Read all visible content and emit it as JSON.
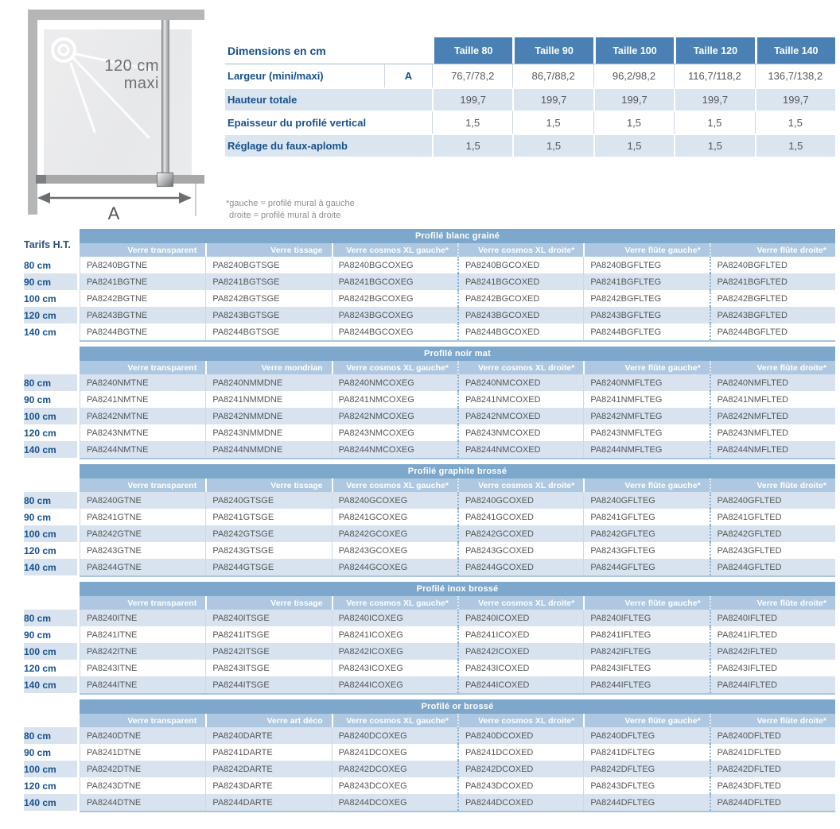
{
  "colors": {
    "size_header_blue": "#4a80b4",
    "band_blue": "#7da8cc",
    "column_header_blue": "#adc8e0",
    "stripe_blue": "#d8e3ef",
    "label_blue": "#17518c",
    "code_gray": "#55575a"
  },
  "diagram": {
    "max_label_line1": "120 cm",
    "max_label_line2": "maxi",
    "dim_label": "A"
  },
  "dimensions_table": {
    "title": "Dimensions en cm",
    "size_headers": [
      "Taille 80",
      "Taille 90",
      "Taille 100",
      "Taille 120",
      "Taille 140"
    ],
    "rows": [
      {
        "label": "Largeur (mini/maxi)",
        "ref": "A",
        "values": [
          "76,7/78,2",
          "86,7/88,2",
          "96,2/98,2",
          "116,7/118,2",
          "136,7/138,2"
        ]
      },
      {
        "label": "Hauteur totale",
        "ref": "",
        "values": [
          "199,7",
          "199,7",
          "199,7",
          "199,7",
          "199,7"
        ]
      },
      {
        "label": "Epaisseur du profilé vertical",
        "ref": "",
        "values": [
          "1,5",
          "1,5",
          "1,5",
          "1,5",
          "1,5"
        ]
      },
      {
        "label": "Réglage du faux-aplomb",
        "ref": "",
        "values": [
          "1,5",
          "1,5",
          "1,5",
          "1,5",
          "1,5"
        ]
      }
    ]
  },
  "footnote": {
    "line1": "*gauche = profilé mural à gauche",
    "line2": "droite = profilé mural à droite"
  },
  "tarifs_label": "Tarifs H.T.",
  "price_tables": [
    {
      "title": "Profilé blanc grainé",
      "columns": [
        "Verre transparent",
        "Verre tissage",
        "Verre cosmos XL gauche*",
        "Verre cosmos XL droite*",
        "Verre flûte gauche*",
        "Verre flûte droite*"
      ],
      "striped_rows": [
        1,
        3
      ],
      "rows": [
        {
          "size": "80 cm",
          "codes": [
            "PA8240BGTNE",
            "PA8240BGTSGE",
            "PA8240BGCOXEG",
            "PA8240BGCOXED",
            "PA8240BGFLTEG",
            "PA8240BGFLTED"
          ]
        },
        {
          "size": "90 cm",
          "codes": [
            "PA8241BGTNE",
            "PA8241BGTSGE",
            "PA8241BGCOXEG",
            "PA8241BGCOXED",
            "PA8241BGFLTEG",
            "PA8241BGFLTED"
          ]
        },
        {
          "size": "100 cm",
          "codes": [
            "PA8242BGTNE",
            "PA8242BGTSGE",
            "PA8242BGCOXEG",
            "PA8242BGCOXED",
            "PA8242BGFLTEG",
            "PA8242BGFLTED"
          ]
        },
        {
          "size": "120 cm",
          "codes": [
            "PA8243BGTNE",
            "PA8243BGTSGE",
            "PA8243BGCOXEG",
            "PA8243BGCOXED",
            "PA8243BGFLTEG",
            "PA8243BGFLTED"
          ]
        },
        {
          "size": "140 cm",
          "codes": [
            "PA8244BGTNE",
            "PA8244BGTSGE",
            "PA8244BGCOXEG",
            "PA8244BGCOXED",
            "PA8244BGFLTEG",
            "PA8244BGFLTED"
          ]
        }
      ]
    },
    {
      "title": "Profilé noir mat",
      "columns": [
        "Verre transparent",
        "Verre mondrian",
        "Verre cosmos XL gauche*",
        "Verre cosmos XL droite*",
        "Verre flûte gauche*",
        "Verre flûte droite*"
      ],
      "striped_rows": [
        0,
        2,
        4
      ],
      "rows": [
        {
          "size": "80 cm",
          "codes": [
            "PA8240NMTNE",
            "PA8240NMMDNE",
            "PA8240NMCOXEG",
            "PA8240NMCOXED",
            "PA8240NMFLTEG",
            "PA8240NMFLTED"
          ]
        },
        {
          "size": "90 cm",
          "codes": [
            "PA8241NMTNE",
            "PA8241NMMDNE",
            "PA8241NMCOXEG",
            "PA8241NMCOXED",
            "PA8241NMFLTEG",
            "PA8241NMFLTED"
          ]
        },
        {
          "size": "100 cm",
          "codes": [
            "PA8242NMTNE",
            "PA8242NMMDNE",
            "PA8242NMCOXEG",
            "PA8242NMCOXED",
            "PA8242NMFLTEG",
            "PA8242NMFLTED"
          ]
        },
        {
          "size": "120 cm",
          "codes": [
            "PA8243NMTNE",
            "PA8243NMMDNE",
            "PA8243NMCOXEG",
            "PA8243NMCOXED",
            "PA8243NMFLTEG",
            "PA8243NMFLTED"
          ]
        },
        {
          "size": "140 cm",
          "codes": [
            "PA8244NMTNE",
            "PA8244NMMDNE",
            "PA8244NMCOXEG",
            "PA8244NMCOXED",
            "PA8244NMFLTEG",
            "PA8244NMFLTED"
          ]
        }
      ]
    },
    {
      "title": "Profilé graphite brossé",
      "columns": [
        "Verre transparent",
        "Verre tissage",
        "Verre cosmos XL gauche*",
        "Verre cosmos XL droite*",
        "Verre flûte gauche*",
        "Verre flûte droite*"
      ],
      "striped_rows": [
        0,
        2,
        4
      ],
      "rows": [
        {
          "size": "80 cm",
          "codes": [
            "PA8240GTNE",
            "PA8240GTSGE",
            "PA8240GCOXEG",
            "PA8240GCOXED",
            "PA8240GFLTEG",
            "PA8240GFLTED"
          ]
        },
        {
          "size": "90 cm",
          "codes": [
            "PA8241GTNE",
            "PA8241GTSGE",
            "PA8241GCOXEG",
            "PA8241GCOXED",
            "PA8241GFLTEG",
            "PA8241GFLTED"
          ]
        },
        {
          "size": "100 cm",
          "codes": [
            "PA8242GTNE",
            "PA8242GTSGE",
            "PA8242GCOXEG",
            "PA8242GCOXED",
            "PA8242GFLTEG",
            "PA8242GFLTED"
          ]
        },
        {
          "size": "120 cm",
          "codes": [
            "PA8243GTNE",
            "PA8243GTSGE",
            "PA8243GCOXEG",
            "PA8243GCOXED",
            "PA8243GFLTEG",
            "PA8243GFLTED"
          ]
        },
        {
          "size": "140 cm",
          "codes": [
            "PA8244GTNE",
            "PA8244GTSGE",
            "PA8244GCOXEG",
            "PA8244GCOXED",
            "PA8244GFLTEG",
            "PA8244GFLTED"
          ]
        }
      ]
    },
    {
      "title": "Profilé inox brossé",
      "columns": [
        "Verre transparent",
        "Verre tissage",
        "Verre cosmos XL gauche*",
        "Verre cosmos XL droite*",
        "Verre flûte gauche*",
        "Verre flûte droite*"
      ],
      "striped_rows": [
        0,
        2,
        4
      ],
      "rows": [
        {
          "size": "80 cm",
          "codes": [
            "PA8240ITNE",
            "PA8240ITSGE",
            "PA8240ICOXEG",
            "PA8240ICOXED",
            "PA8240IFLTEG",
            "PA8240IFLTED"
          ]
        },
        {
          "size": "90 cm",
          "codes": [
            "PA8241ITNE",
            "PA8241ITSGE",
            "PA8241ICOXEG",
            "PA8241ICOXED",
            "PA8241IFLTEG",
            "PA8241IFLTED"
          ]
        },
        {
          "size": "100 cm",
          "codes": [
            "PA8242ITNE",
            "PA8242ITSGE",
            "PA8242ICOXEG",
            "PA8242ICOXED",
            "PA8242IFLTEG",
            "PA8242IFLTED"
          ]
        },
        {
          "size": "120 cm",
          "codes": [
            "PA8243ITNE",
            "PA8243ITSGE",
            "PA8243ICOXEG",
            "PA8243ICOXED",
            "PA8243IFLTEG",
            "PA8243IFLTED"
          ]
        },
        {
          "size": "140 cm",
          "codes": [
            "PA8244ITNE",
            "PA8244ITSGE",
            "PA8244ICOXEG",
            "PA8244ICOXED",
            "PA8244IFLTEG",
            "PA8244IFLTED"
          ]
        }
      ]
    },
    {
      "title": "Profilé or brossé",
      "columns": [
        "Verre transparent",
        "Verre art déco",
        "Verre cosmos XL gauche*",
        "Verre cosmos XL droite*",
        "Verre flûte gauche*",
        "Verre flûte droite*"
      ],
      "striped_rows": [
        0,
        2,
        4
      ],
      "rows": [
        {
          "size": "80 cm",
          "codes": [
            "PA8240DTNE",
            "PA8240DARTE",
            "PA8240DCOXEG",
            "PA8240DCOXED",
            "PA8240DFLTEG",
            "PA8240DFLTED"
          ]
        },
        {
          "size": "90 cm",
          "codes": [
            "PA8241DTNE",
            "PA8241DARTE",
            "PA8241DCOXEG",
            "PA8241DCOXED",
            "PA8241DFLTEG",
            "PA8241DFLTED"
          ]
        },
        {
          "size": "100 cm",
          "codes": [
            "PA8242DTNE",
            "PA8242DARTE",
            "PA8242DCOXEG",
            "PA8242DCOXED",
            "PA8242DFLTEG",
            "PA8242DFLTED"
          ]
        },
        {
          "size": "120 cm",
          "codes": [
            "PA8243DTNE",
            "PA8243DARTE",
            "PA8243DCOXEG",
            "PA8243DCOXED",
            "PA8243DFLTEG",
            "PA8243DFLTED"
          ]
        },
        {
          "size": "140 cm",
          "codes": [
            "PA8244DTNE",
            "PA8244DARTE",
            "PA8244DCOXEG",
            "PA8244DCOXED",
            "PA8244DFLTEG",
            "PA8244DFLTED"
          ]
        }
      ]
    }
  ]
}
